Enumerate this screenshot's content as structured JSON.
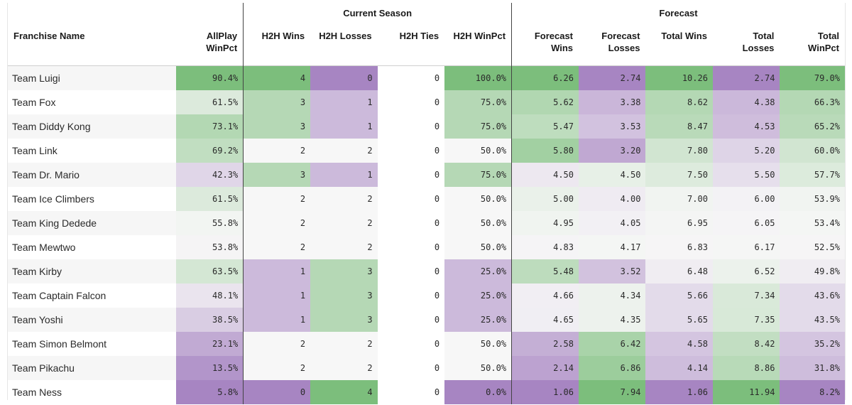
{
  "header": {
    "franchise": "Franchise Name",
    "group_current": "Current Season",
    "group_forecast": "Forecast",
    "columns": [
      "AllPlay WinPct",
      "H2H Wins",
      "H2H Losses",
      "H2H Ties",
      "H2H WinPct",
      "Forecast Wins",
      "Forecast Losses",
      "Total Wins",
      "Total Losses",
      "Total WinPct"
    ]
  },
  "rows": [
    {
      "name": "Team Luigi",
      "allplay": "90.4%",
      "h2h_wins": "4",
      "h2h_losses": "0",
      "h2h_ties": "0",
      "h2h_winpct": "100.0%",
      "fc_wins": "6.26",
      "fc_losses": "2.74",
      "total_wins": "10.26",
      "total_losses": "2.74",
      "total_winpct": "79.0%"
    },
    {
      "name": "Team Fox",
      "allplay": "61.5%",
      "h2h_wins": "3",
      "h2h_losses": "1",
      "h2h_ties": "0",
      "h2h_winpct": "75.0%",
      "fc_wins": "5.62",
      "fc_losses": "3.38",
      "total_wins": "8.62",
      "total_losses": "4.38",
      "total_winpct": "66.3%"
    },
    {
      "name": "Team Diddy Kong",
      "allplay": "73.1%",
      "h2h_wins": "3",
      "h2h_losses": "1",
      "h2h_ties": "0",
      "h2h_winpct": "75.0%",
      "fc_wins": "5.47",
      "fc_losses": "3.53",
      "total_wins": "8.47",
      "total_losses": "4.53",
      "total_winpct": "65.2%"
    },
    {
      "name": "Team Link",
      "allplay": "69.2%",
      "h2h_wins": "2",
      "h2h_losses": "2",
      "h2h_ties": "0",
      "h2h_winpct": "50.0%",
      "fc_wins": "5.80",
      "fc_losses": "3.20",
      "total_wins": "7.80",
      "total_losses": "5.20",
      "total_winpct": "60.0%"
    },
    {
      "name": "Team Dr. Mario",
      "allplay": "42.3%",
      "h2h_wins": "3",
      "h2h_losses": "1",
      "h2h_ties": "0",
      "h2h_winpct": "75.0%",
      "fc_wins": "4.50",
      "fc_losses": "4.50",
      "total_wins": "7.50",
      "total_losses": "5.50",
      "total_winpct": "57.7%"
    },
    {
      "name": "Team Ice Climbers",
      "allplay": "61.5%",
      "h2h_wins": "2",
      "h2h_losses": "2",
      "h2h_ties": "0",
      "h2h_winpct": "50.0%",
      "fc_wins": "5.00",
      "fc_losses": "4.00",
      "total_wins": "7.00",
      "total_losses": "6.00",
      "total_winpct": "53.9%"
    },
    {
      "name": "Team King Dedede",
      "allplay": "55.8%",
      "h2h_wins": "2",
      "h2h_losses": "2",
      "h2h_ties": "0",
      "h2h_winpct": "50.0%",
      "fc_wins": "4.95",
      "fc_losses": "4.05",
      "total_wins": "6.95",
      "total_losses": "6.05",
      "total_winpct": "53.4%"
    },
    {
      "name": "Team Mewtwo",
      "allplay": "53.8%",
      "h2h_wins": "2",
      "h2h_losses": "2",
      "h2h_ties": "0",
      "h2h_winpct": "50.0%",
      "fc_wins": "4.83",
      "fc_losses": "4.17",
      "total_wins": "6.83",
      "total_losses": "6.17",
      "total_winpct": "52.5%"
    },
    {
      "name": "Team Kirby",
      "allplay": "63.5%",
      "h2h_wins": "1",
      "h2h_losses": "3",
      "h2h_ties": "0",
      "h2h_winpct": "25.0%",
      "fc_wins": "5.48",
      "fc_losses": "3.52",
      "total_wins": "6.48",
      "total_losses": "6.52",
      "total_winpct": "49.8%"
    },
    {
      "name": "Team Captain Falcon",
      "allplay": "48.1%",
      "h2h_wins": "1",
      "h2h_losses": "3",
      "h2h_ties": "0",
      "h2h_winpct": "25.0%",
      "fc_wins": "4.66",
      "fc_losses": "4.34",
      "total_wins": "5.66",
      "total_losses": "7.34",
      "total_winpct": "43.6%"
    },
    {
      "name": "Team Yoshi",
      "allplay": "38.5%",
      "h2h_wins": "1",
      "h2h_losses": "3",
      "h2h_ties": "0",
      "h2h_winpct": "25.0%",
      "fc_wins": "4.65",
      "fc_losses": "4.35",
      "total_wins": "5.65",
      "total_losses": "7.35",
      "total_winpct": "43.5%"
    },
    {
      "name": "Team Simon Belmont",
      "allplay": "23.1%",
      "h2h_wins": "2",
      "h2h_losses": "2",
      "h2h_ties": "0",
      "h2h_winpct": "50.0%",
      "fc_wins": "2.58",
      "fc_losses": "6.42",
      "total_wins": "4.58",
      "total_losses": "8.42",
      "total_winpct": "35.2%"
    },
    {
      "name": "Team Pikachu",
      "allplay": "13.5%",
      "h2h_wins": "2",
      "h2h_losses": "2",
      "h2h_ties": "0",
      "h2h_winpct": "50.0%",
      "fc_wins": "2.14",
      "fc_losses": "6.86",
      "total_wins": "4.14",
      "total_losses": "8.86",
      "total_winpct": "31.8%"
    },
    {
      "name": "Team Ness",
      "allplay": "5.8%",
      "h2h_wins": "0",
      "h2h_losses": "4",
      "h2h_ties": "0",
      "h2h_winpct": "0.0%",
      "fc_wins": "1.06",
      "fc_losses": "7.94",
      "total_wins": "1.06",
      "total_losses": "11.94",
      "total_winpct": "8.2%"
    }
  ],
  "palette": {
    "green_dark": "#7cbe7c",
    "neutral": "#f7f7f7",
    "purple_dark": "#a785c2"
  }
}
